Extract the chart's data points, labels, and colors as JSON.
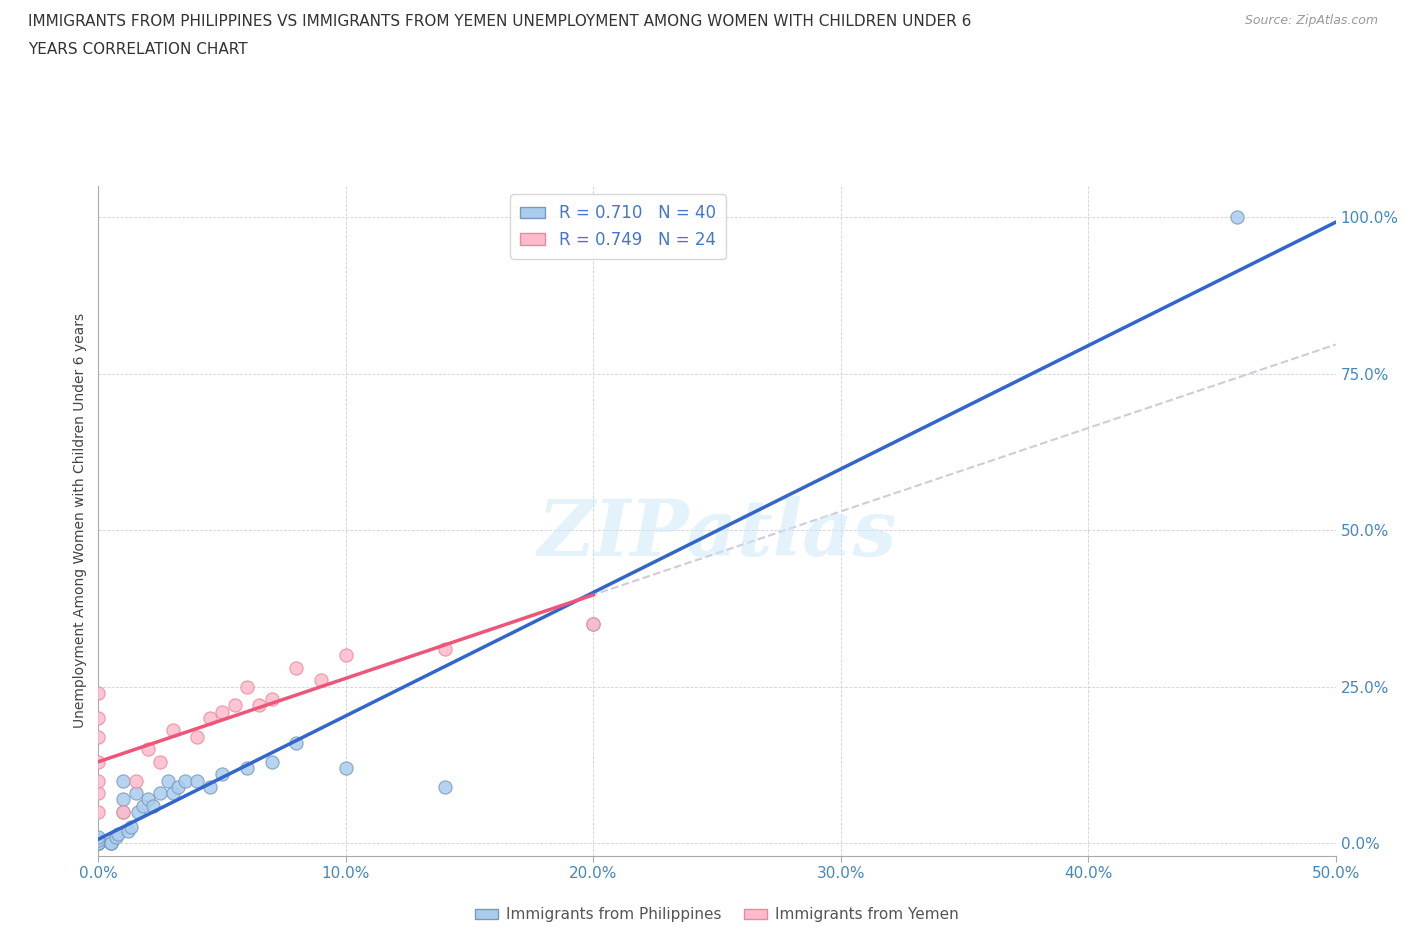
{
  "title_line1": "IMMIGRANTS FROM PHILIPPINES VS IMMIGRANTS FROM YEMEN UNEMPLOYMENT AMONG WOMEN WITH CHILDREN UNDER 6",
  "title_line2": "YEARS CORRELATION CHART",
  "source": "Source: ZipAtlas.com",
  "ylabel": "Unemployment Among Women with Children Under 6 years",
  "xlim": [
    0.0,
    0.5
  ],
  "ylim": [
    -0.02,
    1.05
  ],
  "xticks": [
    0.0,
    0.1,
    0.2,
    0.3,
    0.4,
    0.5
  ],
  "yticks": [
    0.0,
    0.25,
    0.5,
    0.75,
    1.0
  ],
  "philippines_color": "#aaccee",
  "philippines_edge": "#7799bb",
  "yemen_color": "#ffbbcc",
  "yemen_edge": "#ee8899",
  "philippines_line_color": "#3366cc",
  "yemen_line_color": "#ee5577",
  "dashed_line_color": "#ccccdd",
  "R_philippines": 0.71,
  "N_philippines": 40,
  "R_yemen": 0.749,
  "N_yemen": 24,
  "watermark": "ZIPatlas",
  "philippines_x": [
    0.0,
    0.0,
    0.0,
    0.0,
    0.0,
    0.0,
    0.0,
    0.0,
    0.0,
    0.0,
    0.005,
    0.005,
    0.005,
    0.007,
    0.008,
    0.01,
    0.01,
    0.01,
    0.012,
    0.013,
    0.015,
    0.016,
    0.018,
    0.02,
    0.022,
    0.025,
    0.028,
    0.03,
    0.032,
    0.035,
    0.04,
    0.045,
    0.05,
    0.06,
    0.07,
    0.08,
    0.1,
    0.14,
    0.2,
    0.46
  ],
  "philippines_y": [
    0.0,
    0.0,
    0.0,
    0.0,
    0.0,
    0.0,
    0.0,
    0.0,
    0.005,
    0.01,
    0.0,
    0.0,
    0.0,
    0.01,
    0.015,
    0.05,
    0.07,
    0.1,
    0.02,
    0.025,
    0.08,
    0.05,
    0.06,
    0.07,
    0.06,
    0.08,
    0.1,
    0.08,
    0.09,
    0.1,
    0.1,
    0.09,
    0.11,
    0.12,
    0.13,
    0.16,
    0.12,
    0.09,
    0.35,
    1.0
  ],
  "yemen_x": [
    0.0,
    0.0,
    0.0,
    0.0,
    0.0,
    0.0,
    0.0,
    0.01,
    0.015,
    0.02,
    0.025,
    0.03,
    0.04,
    0.045,
    0.05,
    0.055,
    0.06,
    0.065,
    0.07,
    0.08,
    0.09,
    0.1,
    0.14,
    0.2
  ],
  "yemen_y": [
    0.05,
    0.08,
    0.1,
    0.13,
    0.17,
    0.2,
    0.24,
    0.05,
    0.1,
    0.15,
    0.13,
    0.18,
    0.17,
    0.2,
    0.21,
    0.22,
    0.25,
    0.22,
    0.23,
    0.28,
    0.26,
    0.3,
    0.31,
    0.35
  ]
}
